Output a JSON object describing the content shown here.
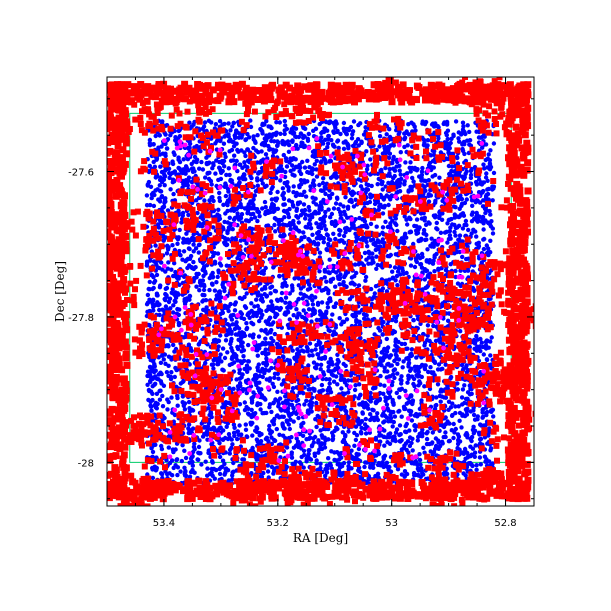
{
  "chart_data": {
    "type": "scatter",
    "title": "",
    "xlabel": "RA [Deg]",
    "ylabel": "Dec [Deg]",
    "xlim": [
      53.5,
      52.75
    ],
    "ylim": [
      -28.06,
      -27.47
    ],
    "x_reversed": true,
    "xticks": [
      53.4,
      53.2,
      53.0,
      52.8
    ],
    "xtick_labels": [
      "53.4",
      "53.2",
      "53",
      "52.8"
    ],
    "yticks": [
      -27.6,
      -27.8,
      -28.0
    ],
    "ytick_labels": [
      "-27.6",
      "-27.8",
      "-28"
    ],
    "grid": false,
    "legend": "none",
    "footprint": {
      "ra_min": 53.46,
      "ra_max": 52.79,
      "dec_min": -28.0,
      "dec_max": -27.52,
      "outline_color": "#00cc66"
    },
    "series": [
      {
        "marker": "circle",
        "color": "#0000ff",
        "region": "inner field",
        "ra_range": [
          53.43,
          52.82
        ],
        "dec_range": [
          -28.03,
          -27.53
        ],
        "approx_count": 6500
      },
      {
        "marker": "square",
        "color": "#ff0000",
        "region": "whole field, dense at edges",
        "ra_range": [
          53.5,
          52.76
        ],
        "dec_range": [
          -28.05,
          -27.48
        ],
        "approx_count": 3800
      },
      {
        "marker": "circle",
        "color": "#ff00ff",
        "region": "inner field",
        "ra_range": [
          53.42,
          52.83
        ],
        "dec_range": [
          -28.0,
          -27.55
        ],
        "approx_count": 160
      }
    ]
  }
}
